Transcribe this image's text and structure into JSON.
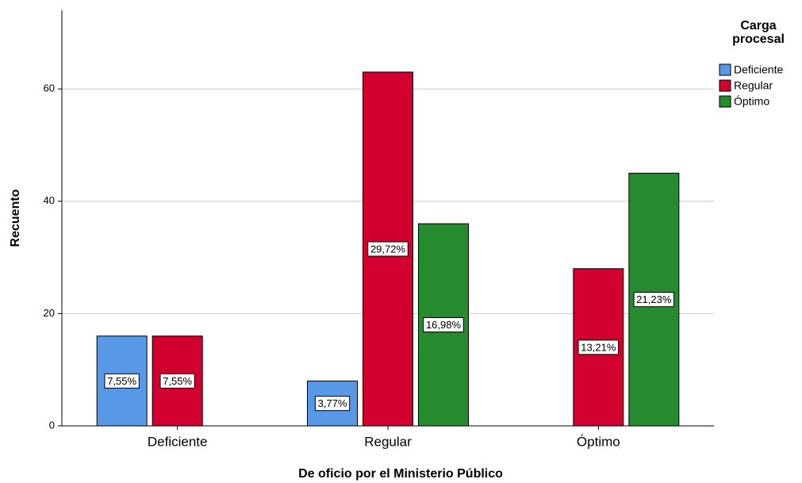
{
  "chart_data": {
    "type": "bar",
    "x_label": "De oficio por el Ministerio Público",
    "y_label": "Recuento",
    "categories": [
      "Deficiente",
      "Regular",
      "Óptimo"
    ],
    "legend_title": "Carga procesal",
    "legend_position": "right",
    "series": [
      {
        "name": "Deficiente",
        "color": "#5799e6",
        "values": [
          16,
          8,
          null
        ],
        "percent_labels": [
          "7,55%",
          "3,77%",
          null
        ]
      },
      {
        "name": "Regular",
        "color": "#d2002e",
        "values": [
          16,
          63,
          28
        ],
        "percent_labels": [
          "7,55%",
          "29,72%",
          "13,21%"
        ]
      },
      {
        "name": "Óptimo",
        "color": "#268a2e",
        "values": [
          null,
          36,
          45
        ],
        "percent_labels": [
          null,
          "16,98%",
          "21,23%"
        ]
      }
    ],
    "ylim": [
      0,
      74
    ],
    "yticks": [
      0,
      20,
      40,
      60
    ],
    "grid": true
  }
}
